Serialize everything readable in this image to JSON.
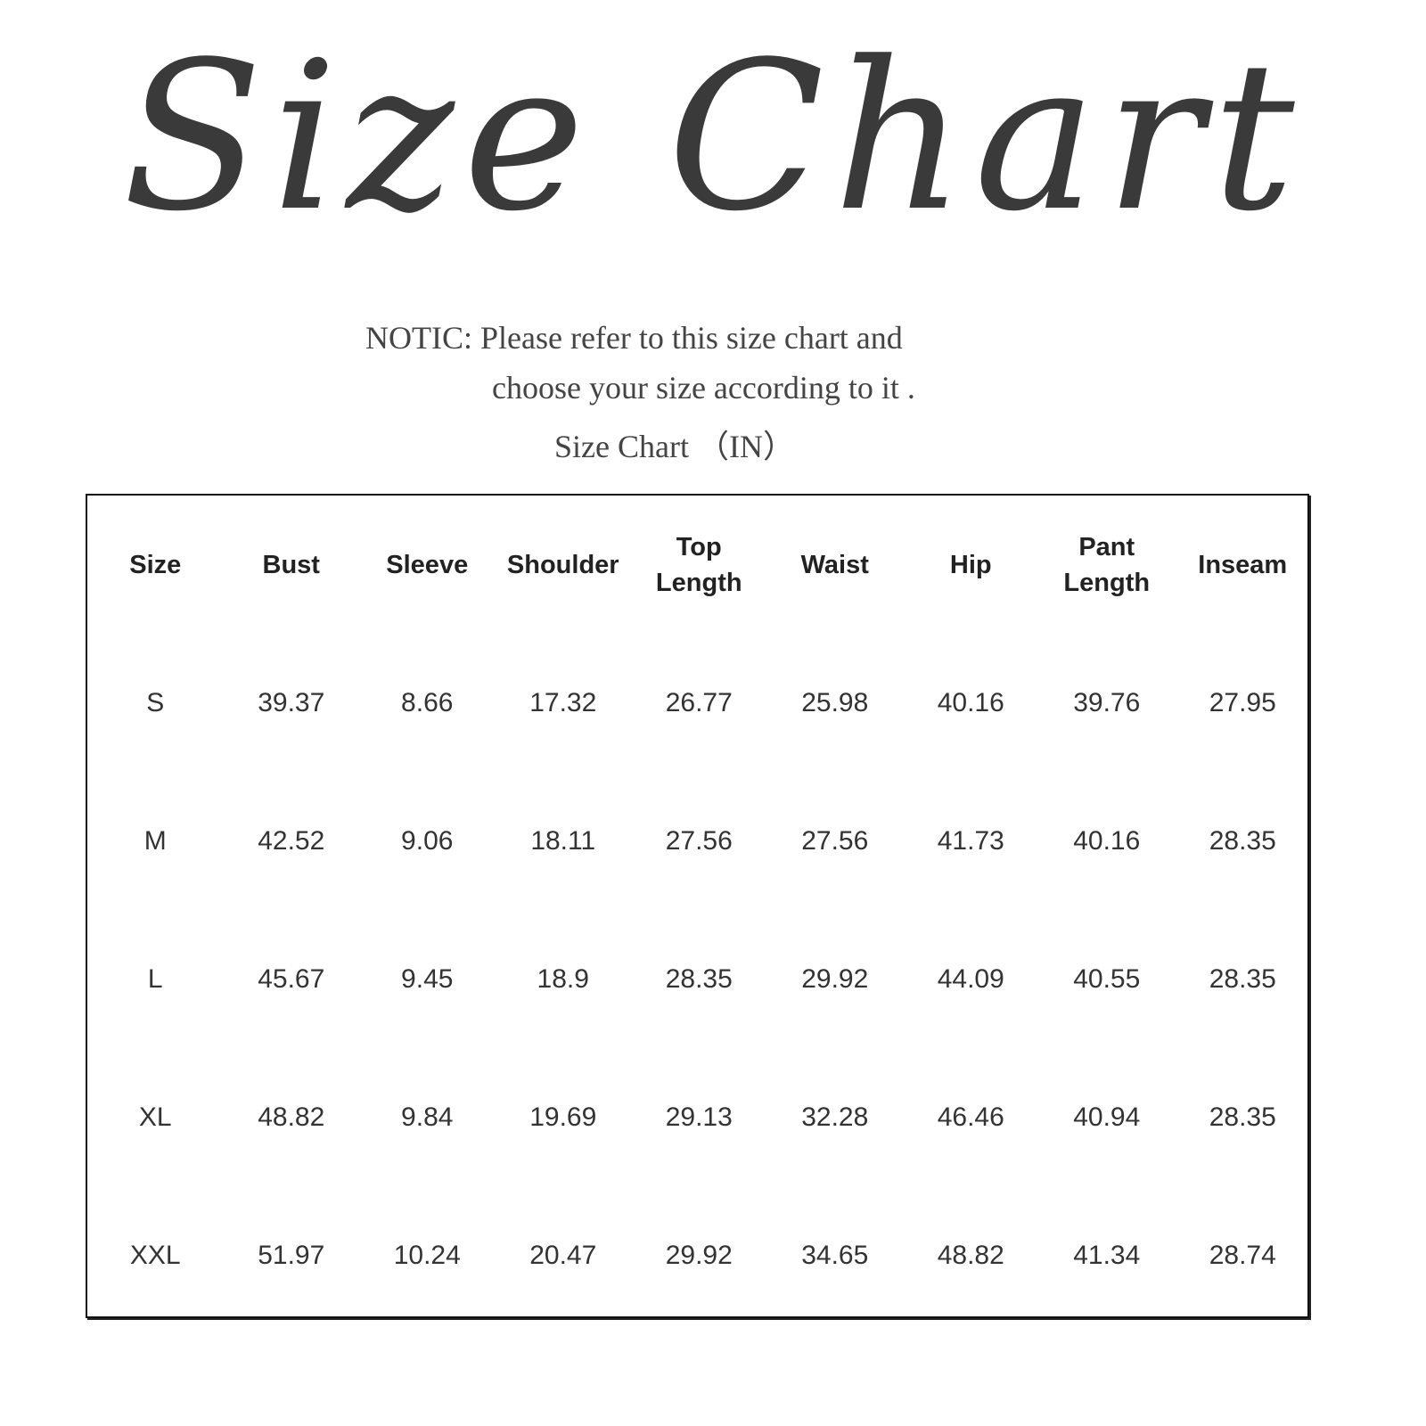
{
  "title": "Size Chart",
  "notice_line1": "NOTIC: Please refer to this size chart and",
  "notice_line2": "choose your size according to it .",
  "subtitle": "Size Chart （IN）",
  "table": {
    "headers": [
      "Size",
      "Bust",
      "Sleeve",
      "Shoulder",
      "Top\nLength",
      "Waist",
      "Hip",
      "Pant\nLength",
      "Inseam"
    ],
    "rows": [
      [
        "S",
        "39.37",
        "8.66",
        "17.32",
        "26.77",
        "25.98",
        "40.16",
        "39.76",
        "27.95"
      ],
      [
        "M",
        "42.52",
        "9.06",
        "18.11",
        "27.56",
        "27.56",
        "41.73",
        "40.16",
        "28.35"
      ],
      [
        "L",
        "45.67",
        "9.45",
        "18.9",
        "28.35",
        "29.92",
        "44.09",
        "40.55",
        "28.35"
      ],
      [
        "XL",
        "48.82",
        "9.84",
        "19.69",
        "29.13",
        "32.28",
        "46.46",
        "40.94",
        "28.35"
      ],
      [
        "XXL",
        "51.97",
        "10.24",
        "20.47",
        "29.92",
        "34.65",
        "48.82",
        "41.34",
        "28.74"
      ]
    ]
  }
}
